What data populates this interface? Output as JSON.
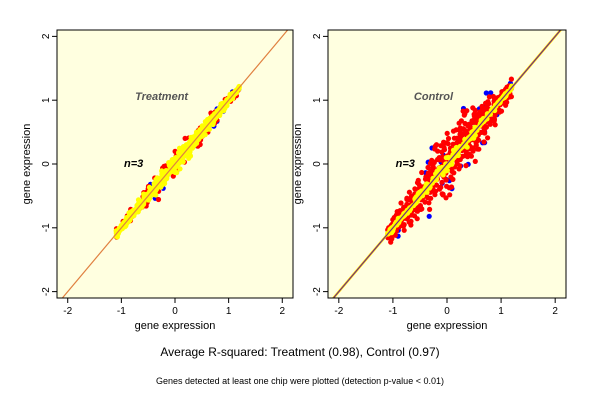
{
  "figure": {
    "caption": "Average R-squared: Treatment (0.98), Control (0.97)",
    "footnote": "Genes detected at least one chip were plotted (detection p-value < 0.01)"
  },
  "colors": {
    "blue": "#0000ff",
    "red": "#ff0000",
    "yellow": "#ffff00",
    "treatment_line": "#e08040",
    "control_line": "#5a189a",
    "control_line2": "#ffdd00",
    "panel_bg": "#ffffe0"
  },
  "chart_data": [
    {
      "type": "scatter",
      "title": "Treatment",
      "annotation": "n=3",
      "xlabel": "gene expression",
      "ylabel": "gene expression",
      "xlim": [
        -2.2,
        2.2
      ],
      "ylim": [
        -2.1,
        2.1
      ],
      "xticks": [
        "-2",
        "-1",
        "0",
        "1",
        "2"
      ],
      "yticks": [
        "-2",
        "-1",
        "0",
        "1",
        "2"
      ],
      "diagonal": {
        "from": [
          -2.2,
          -2.2
        ],
        "to": [
          2.2,
          2.2
        ]
      },
      "series": [
        {
          "color": "blue",
          "spread": 0.16,
          "count": 20
        },
        {
          "color": "red",
          "spread": 0.13,
          "count": 110
        },
        {
          "color": "yellow",
          "spread": 0.07,
          "count": 600
        }
      ],
      "x_range": [
        -1.1,
        1.2
      ]
    },
    {
      "type": "scatter",
      "title": "Control",
      "annotation": "n=3",
      "xlabel": "gene expression",
      "ylabel": "gene expression",
      "xlim": [
        -2.2,
        2.2
      ],
      "ylim": [
        -2.1,
        2.1
      ],
      "xticks": [
        "-2",
        "-1",
        "0",
        "1",
        "2"
      ],
      "yticks": [
        "-2",
        "-1",
        "0",
        "1",
        "2"
      ],
      "diagonal": {
        "from": [
          -2.2,
          -2.2
        ],
        "to": [
          2.2,
          2.2
        ]
      },
      "series": [
        {
          "color": "blue",
          "spread": 0.32,
          "count": 60
        },
        {
          "color": "red",
          "spread": 0.26,
          "count": 550
        },
        {
          "color": "yellow",
          "spread": 0.05,
          "count": 250
        }
      ],
      "x_range": [
        -1.1,
        1.2
      ]
    }
  ]
}
